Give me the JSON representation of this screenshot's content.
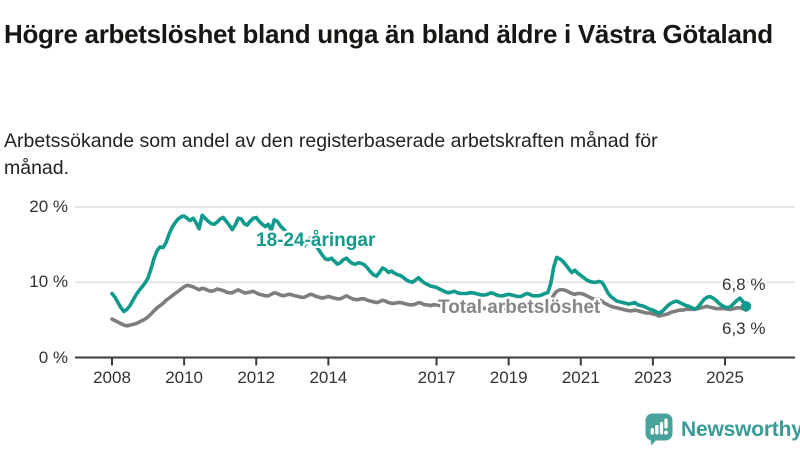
{
  "header": {
    "title": "Högre arbetslöshet bland unga än bland äldre i Västra Götaland",
    "subtitle": "Arbetssökande som andel av den registerbaserade arbetskraften månad för månad."
  },
  "colors": {
    "youth": "#109a8c",
    "total": "#7d7d7d",
    "grid": "#d8d8d8",
    "axis": "#3a3a3a",
    "tick_text": "#333333",
    "logo_bubble": "#4aa29d",
    "logo_text": "#3a9a95"
  },
  "chart_data": {
    "type": "line",
    "title": "Högre arbetslöshet bland unga än bland äldre i Västra Götaland",
    "subtitle": "Arbetssökande som andel av den registerbaserade arbetskraften månad för månad.",
    "x_start": "2008-01",
    "x_end": "2025-08",
    "x_interval": "monthly",
    "ylim": [
      0,
      20
    ],
    "grid": "horizontal",
    "legend_position": "inline-labels",
    "yticks": [
      {
        "value": 0,
        "label": "0 %"
      },
      {
        "value": 10,
        "label": "10 %"
      },
      {
        "value": 20,
        "label": "20 %"
      }
    ],
    "xticks": [
      {
        "year": 2008,
        "label": "2008"
      },
      {
        "year": 2010,
        "label": "2010"
      },
      {
        "year": 2012,
        "label": "2012"
      },
      {
        "year": 2014,
        "label": "2014"
      },
      {
        "year": 2017,
        "label": "2017"
      },
      {
        "year": 2019,
        "label": "2019"
      },
      {
        "year": 2021,
        "label": "2021"
      },
      {
        "year": 2023,
        "label": "2023"
      },
      {
        "year": 2025,
        "label": "2025"
      }
    ],
    "series": [
      {
        "name": "18-24-åringar",
        "color": "#109a8c",
        "end_label": "6,8 %",
        "end_value": 6.8,
        "values": [
          8.5,
          8.0,
          7.3,
          6.6,
          6.1,
          6.4,
          6.9,
          7.6,
          8.3,
          8.9,
          9.4,
          9.9,
          10.6,
          11.8,
          13.2,
          14.2,
          14.7,
          14.6,
          15.3,
          16.4,
          17.3,
          17.9,
          18.4,
          18.7,
          18.8,
          18.5,
          18.2,
          18.5,
          17.9,
          17.1,
          18.9,
          18.5,
          18.1,
          17.8,
          17.7,
          18.0,
          18.4,
          18.6,
          18.1,
          17.6,
          17.0,
          17.6,
          18.5,
          18.4,
          17.8,
          17.6,
          18.1,
          18.5,
          18.6,
          18.1,
          17.7,
          17.4,
          17.7,
          16.9,
          18.3,
          18.1,
          17.5,
          17.1,
          16.7,
          16.4,
          16.1,
          15.7,
          15.3,
          14.9,
          14.8,
          15.4,
          15.9,
          15.5,
          14.8,
          14.2,
          13.6,
          13.1,
          13.0,
          13.2,
          12.8,
          12.4,
          12.6,
          13.0,
          13.2,
          12.8,
          12.5,
          12.4,
          12.6,
          12.5,
          12.3,
          11.9,
          11.4,
          11.0,
          10.8,
          11.3,
          11.9,
          11.7,
          11.3,
          11.5,
          11.2,
          11.0,
          10.9,
          10.6,
          10.3,
          10.1,
          10.0,
          10.3,
          10.6,
          10.2,
          9.9,
          9.7,
          9.5,
          9.4,
          9.3,
          9.1,
          8.9,
          8.7,
          8.6,
          8.7,
          8.8,
          8.6,
          8.5,
          8.5,
          8.5,
          8.6,
          8.6,
          8.5,
          8.4,
          8.3,
          8.3,
          8.4,
          8.6,
          8.5,
          8.3,
          8.2,
          8.2,
          8.3,
          8.4,
          8.3,
          8.2,
          8.1,
          8.1,
          8.3,
          8.5,
          8.4,
          8.2,
          8.2,
          8.2,
          8.3,
          8.5,
          8.6,
          9.8,
          12.0,
          13.3,
          13.1,
          12.8,
          12.3,
          11.8,
          11.3,
          11.6,
          11.2,
          10.9,
          10.6,
          10.3,
          10.1,
          10.0,
          10.0,
          10.1,
          10.0,
          9.4,
          8.6,
          8.1,
          7.8,
          7.5,
          7.4,
          7.3,
          7.2,
          7.1,
          7.2,
          7.3,
          7.0,
          6.9,
          6.8,
          6.6,
          6.4,
          6.3,
          6.1,
          5.9,
          6.1,
          6.5,
          6.9,
          7.2,
          7.4,
          7.5,
          7.3,
          7.1,
          6.9,
          6.8,
          6.6,
          6.4,
          6.7,
          7.2,
          7.7,
          8.0,
          8.1,
          7.9,
          7.6,
          7.2,
          6.9,
          6.7,
          6.6,
          6.8,
          7.2,
          7.6,
          7.9,
          7.4,
          6.8
        ]
      },
      {
        "name": "Total arbetslöshet",
        "color": "#7d7d7d",
        "end_label": "6,3 %",
        "end_value": 6.3,
        "values": [
          5.1,
          4.9,
          4.7,
          4.5,
          4.3,
          4.2,
          4.3,
          4.4,
          4.5,
          4.7,
          4.9,
          5.1,
          5.4,
          5.8,
          6.2,
          6.6,
          6.9,
          7.2,
          7.6,
          7.9,
          8.2,
          8.5,
          8.8,
          9.1,
          9.4,
          9.6,
          9.5,
          9.4,
          9.2,
          9.0,
          9.2,
          9.1,
          8.9,
          8.8,
          8.9,
          9.1,
          9.0,
          8.9,
          8.7,
          8.6,
          8.6,
          8.8,
          9.0,
          8.8,
          8.6,
          8.6,
          8.7,
          8.8,
          8.6,
          8.4,
          8.3,
          8.2,
          8.2,
          8.4,
          8.6,
          8.5,
          8.3,
          8.2,
          8.3,
          8.4,
          8.3,
          8.2,
          8.1,
          8.0,
          8.0,
          8.2,
          8.4,
          8.3,
          8.1,
          8.0,
          7.9,
          8.0,
          8.1,
          8.0,
          7.9,
          7.8,
          7.8,
          8.0,
          8.2,
          8.0,
          7.8,
          7.7,
          7.7,
          7.8,
          7.8,
          7.6,
          7.5,
          7.4,
          7.3,
          7.4,
          7.6,
          7.5,
          7.3,
          7.2,
          7.2,
          7.3,
          7.3,
          7.2,
          7.1,
          7.0,
          7.0,
          7.1,
          7.3,
          7.2,
          7.0,
          7.0,
          6.9,
          7.0,
          7.0,
          6.9,
          6.9,
          6.8,
          6.8,
          6.9,
          7.0,
          6.9,
          6.8,
          6.7,
          6.7,
          6.8,
          6.8,
          6.7,
          6.6,
          6.6,
          6.5,
          6.6,
          6.7,
          6.6,
          6.5,
          6.4,
          6.4,
          6.5,
          6.5,
          6.5,
          6.4,
          6.4,
          6.4,
          6.5,
          6.6,
          6.6,
          6.5,
          6.5,
          6.6,
          6.7,
          6.8,
          6.9,
          7.4,
          8.3,
          8.8,
          9.0,
          9.0,
          8.9,
          8.7,
          8.5,
          8.4,
          8.5,
          8.5,
          8.4,
          8.2,
          8.0,
          7.8,
          7.7,
          7.7,
          7.5,
          7.2,
          7.0,
          6.8,
          6.7,
          6.6,
          6.5,
          6.4,
          6.3,
          6.2,
          6.2,
          6.3,
          6.2,
          6.1,
          6.0,
          5.9,
          5.9,
          5.8,
          5.7,
          5.5,
          5.6,
          5.7,
          5.8,
          6.0,
          6.1,
          6.2,
          6.3,
          6.3,
          6.4,
          6.4,
          6.4,
          6.4,
          6.5,
          6.6,
          6.7,
          6.8,
          6.7,
          6.6,
          6.5,
          6.5,
          6.5,
          6.5,
          6.4,
          6.4,
          6.5,
          6.6,
          6.6,
          6.5,
          6.3
        ]
      }
    ]
  },
  "branding": {
    "logo_text": "Newsworthy",
    "logo_icon": "bar-chart-speech-bubble"
  }
}
